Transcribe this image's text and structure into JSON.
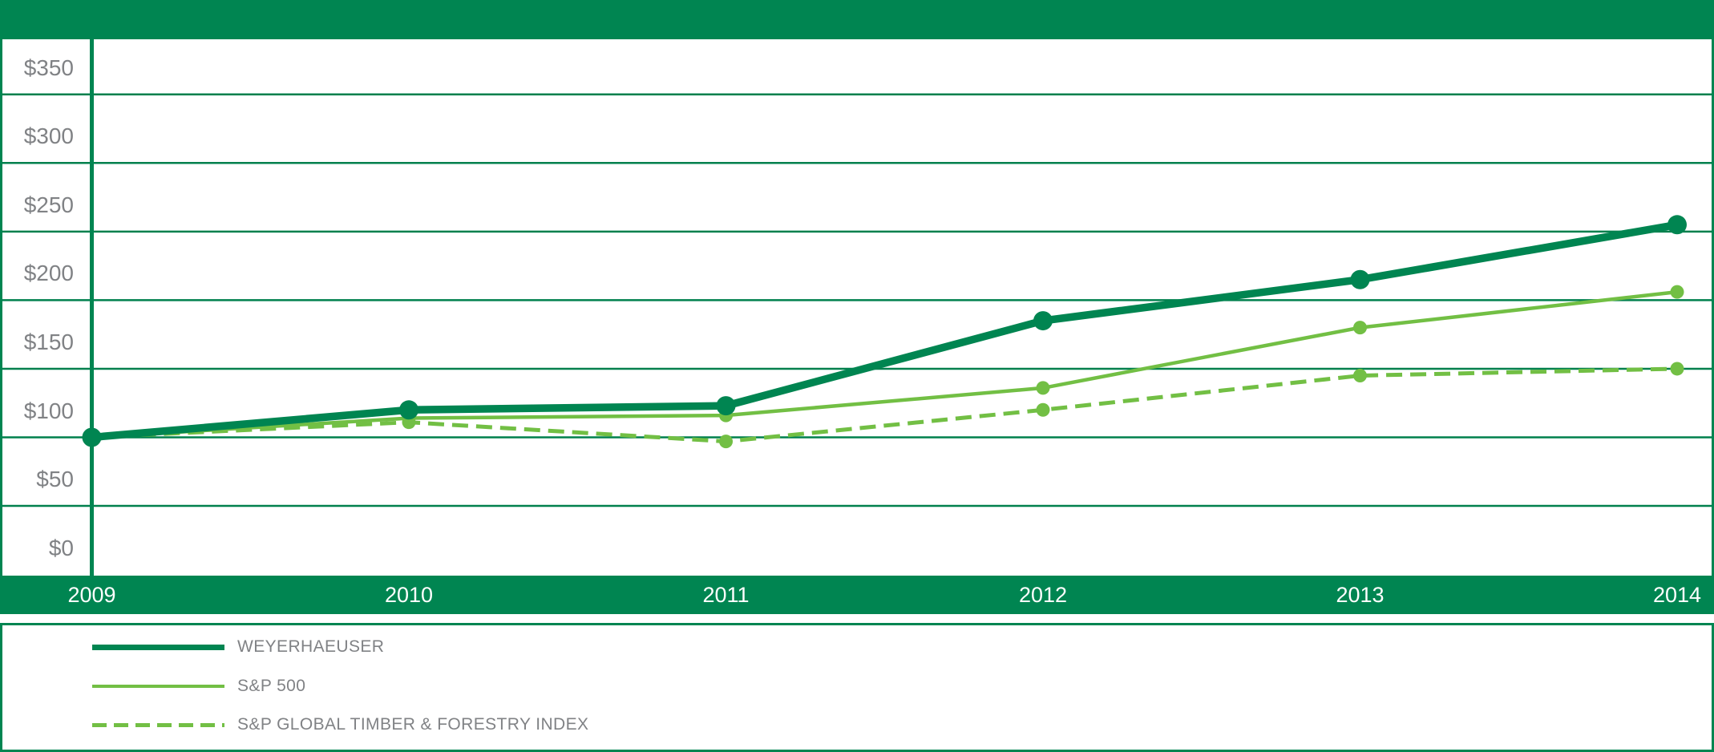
{
  "header": {
    "title": ""
  },
  "colors": {
    "brand_green": "#008551",
    "light_green": "#72bf44",
    "grid_green": "#00804d",
    "label_gray": "#808285",
    "axis_label_white": "#ffffff",
    "background": "#ffffff"
  },
  "chart_data": {
    "type": "line",
    "title": "",
    "xlabel": "",
    "ylabel": "",
    "x": [
      "2009",
      "2010",
      "2011",
      "2012",
      "2013",
      "2014"
    ],
    "series": [
      {
        "name": "WEYERHAEUSER",
        "values": [
          100,
          120,
          123,
          185,
          215,
          255
        ],
        "color": "#008551",
        "line_style": "solid",
        "line_weight": "thick",
        "markers": true
      },
      {
        "name": "S&P 500",
        "values": [
          100,
          114,
          116,
          136,
          180,
          206
        ],
        "color": "#72bf44",
        "line_style": "solid",
        "line_weight": "thin",
        "markers": true
      },
      {
        "name": "S&P GLOBAL TIMBER & FORESTRY INDEX",
        "values": [
          100,
          111,
          97,
          120,
          145,
          150
        ],
        "color": "#72bf44",
        "line_style": "dashed",
        "line_weight": "thin",
        "markers": true
      }
    ],
    "y_ticks": [
      {
        "label": "$350",
        "value": 350
      },
      {
        "label": "$300",
        "value": 300
      },
      {
        "label": "$250",
        "value": 250
      },
      {
        "label": "$200",
        "value": 200
      },
      {
        "label": "$150",
        "value": 150
      },
      {
        "label": "$100",
        "value": 100
      },
      {
        "label": "$50",
        "value": 50
      },
      {
        "label": "$0",
        "value": 0
      }
    ],
    "ylim": [
      0,
      390
    ],
    "grid": true,
    "legend_position": "bottom"
  }
}
